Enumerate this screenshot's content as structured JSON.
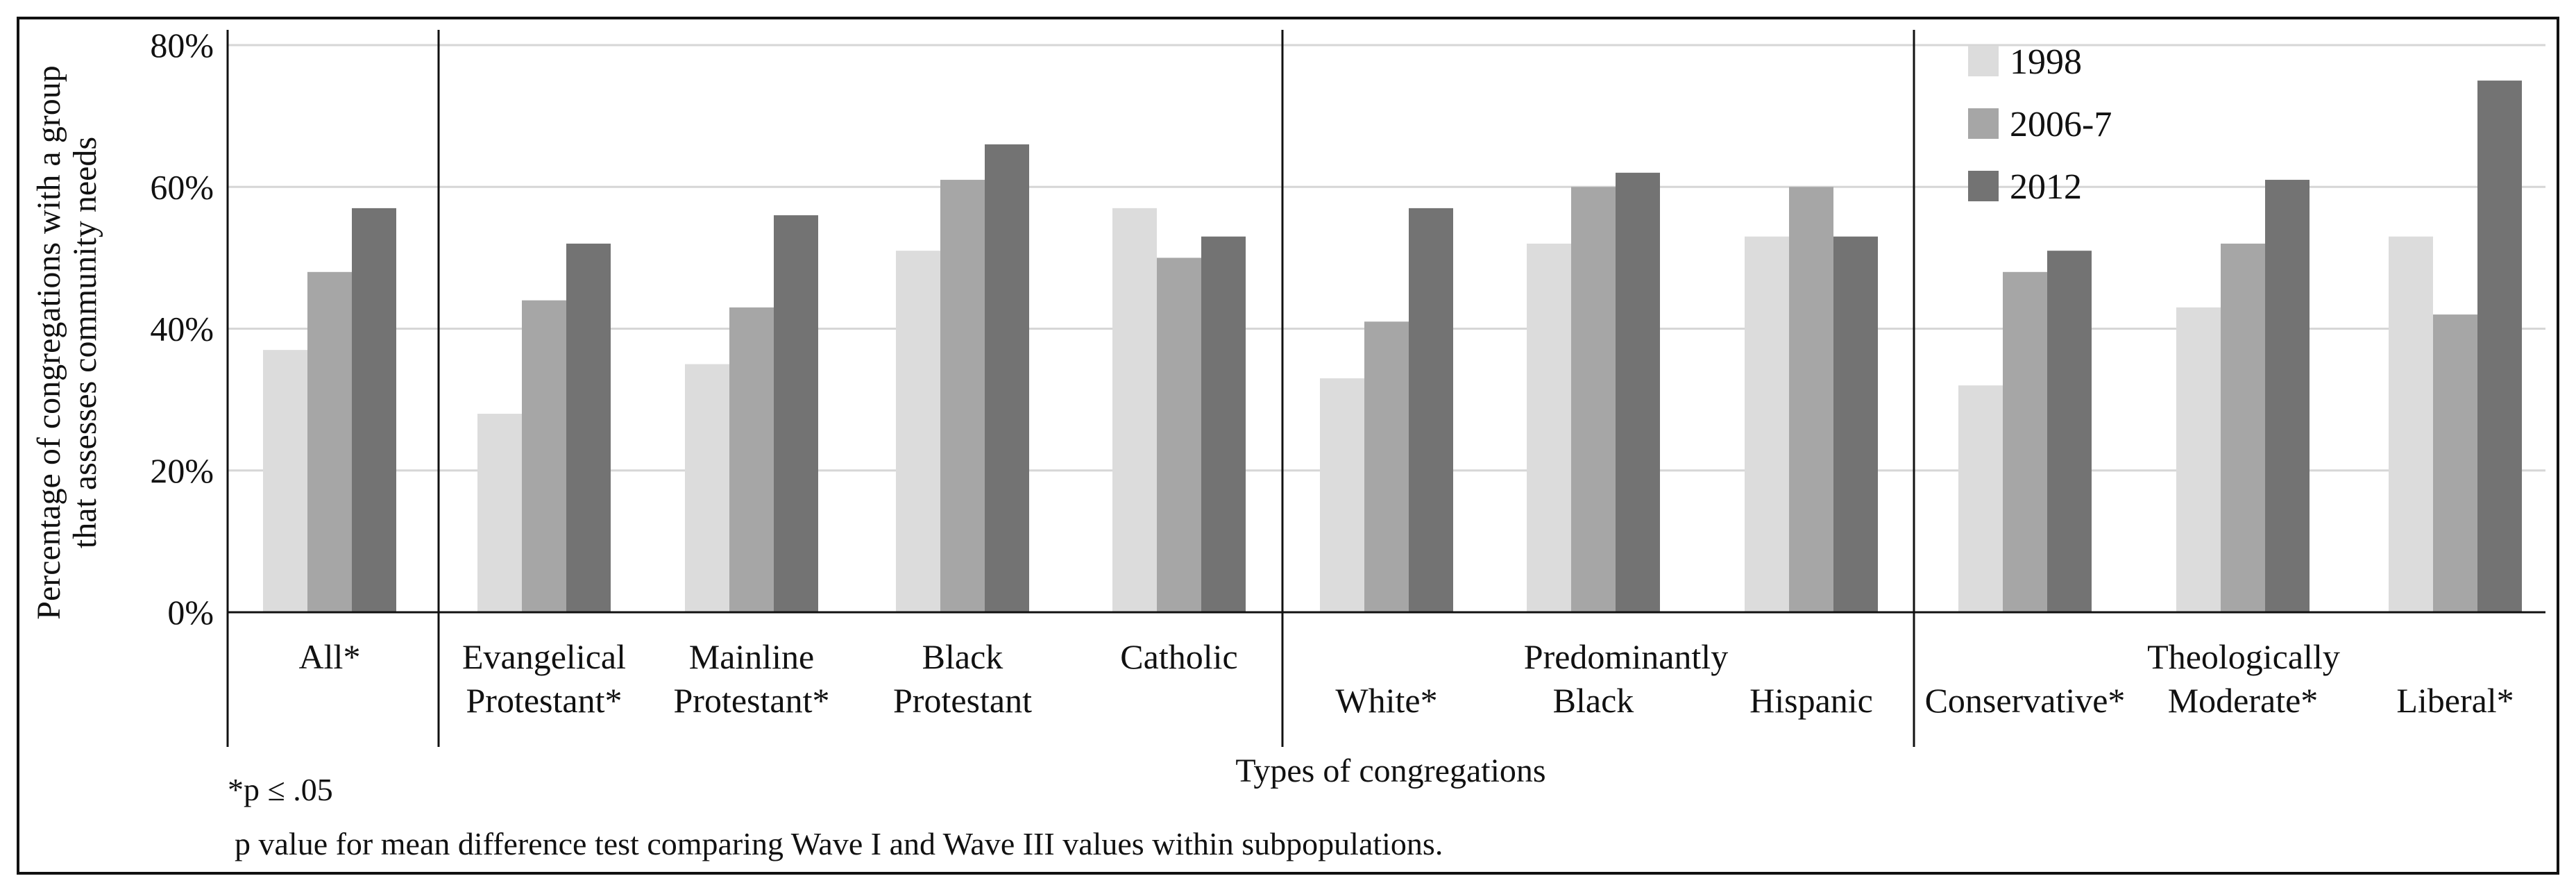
{
  "chart_data": {
    "type": "bar",
    "title": "",
    "ylabel": [
      "Percentage of congregations with a group",
      "that assesses community needs"
    ],
    "xlabel": "Types of congregations",
    "ylim": [
      0,
      80
    ],
    "yticks": [
      "0%",
      "20%",
      "40%",
      "60%",
      "80%"
    ],
    "series": [
      {
        "name": "1998",
        "color": "#dcdcdc"
      },
      {
        "name": "2006-7",
        "color": "#a6a6a6"
      },
      {
        "name": "2012",
        "color": "#737373"
      }
    ],
    "sections": [
      {
        "name": "",
        "groups": [
          {
            "label": [
              "All*"
            ],
            "values": [
              37,
              48,
              57
            ]
          }
        ]
      },
      {
        "name": "",
        "groups": [
          {
            "label": [
              "Evangelical",
              "Protestant*"
            ],
            "values": [
              28,
              44,
              52
            ]
          },
          {
            "label": [
              "Mainline",
              "Protestant*"
            ],
            "values": [
              35,
              43,
              56
            ]
          },
          {
            "label": [
              "Black",
              "Protestant"
            ],
            "values": [
              51,
              61,
              66
            ]
          },
          {
            "label": [
              "Catholic"
            ],
            "values": [
              57,
              50,
              53
            ]
          }
        ]
      },
      {
        "name": "Predominantly",
        "groups": [
          {
            "label": [
              "",
              "White*"
            ],
            "values": [
              33,
              41,
              57
            ]
          },
          {
            "label": [
              "",
              "Black"
            ],
            "values": [
              52,
              60,
              62
            ]
          },
          {
            "label": [
              "",
              "Hispanic"
            ],
            "values": [
              53,
              60,
              53
            ]
          }
        ]
      },
      {
        "name": "Theologically",
        "groups": [
          {
            "label": [
              "",
              "Conservative*"
            ],
            "values": [
              32,
              48,
              51
            ]
          },
          {
            "label": [
              "",
              "Moderate*"
            ],
            "values": [
              43,
              52,
              61
            ]
          },
          {
            "label": [
              "",
              "Liberal*"
            ],
            "values": [
              53,
              42,
              75
            ]
          }
        ]
      }
    ],
    "legend_position": "top-right",
    "notes": [
      "*p ≤ .05",
      "p value for mean difference test comparing Wave I and Wave III values within subpopulations."
    ]
  }
}
